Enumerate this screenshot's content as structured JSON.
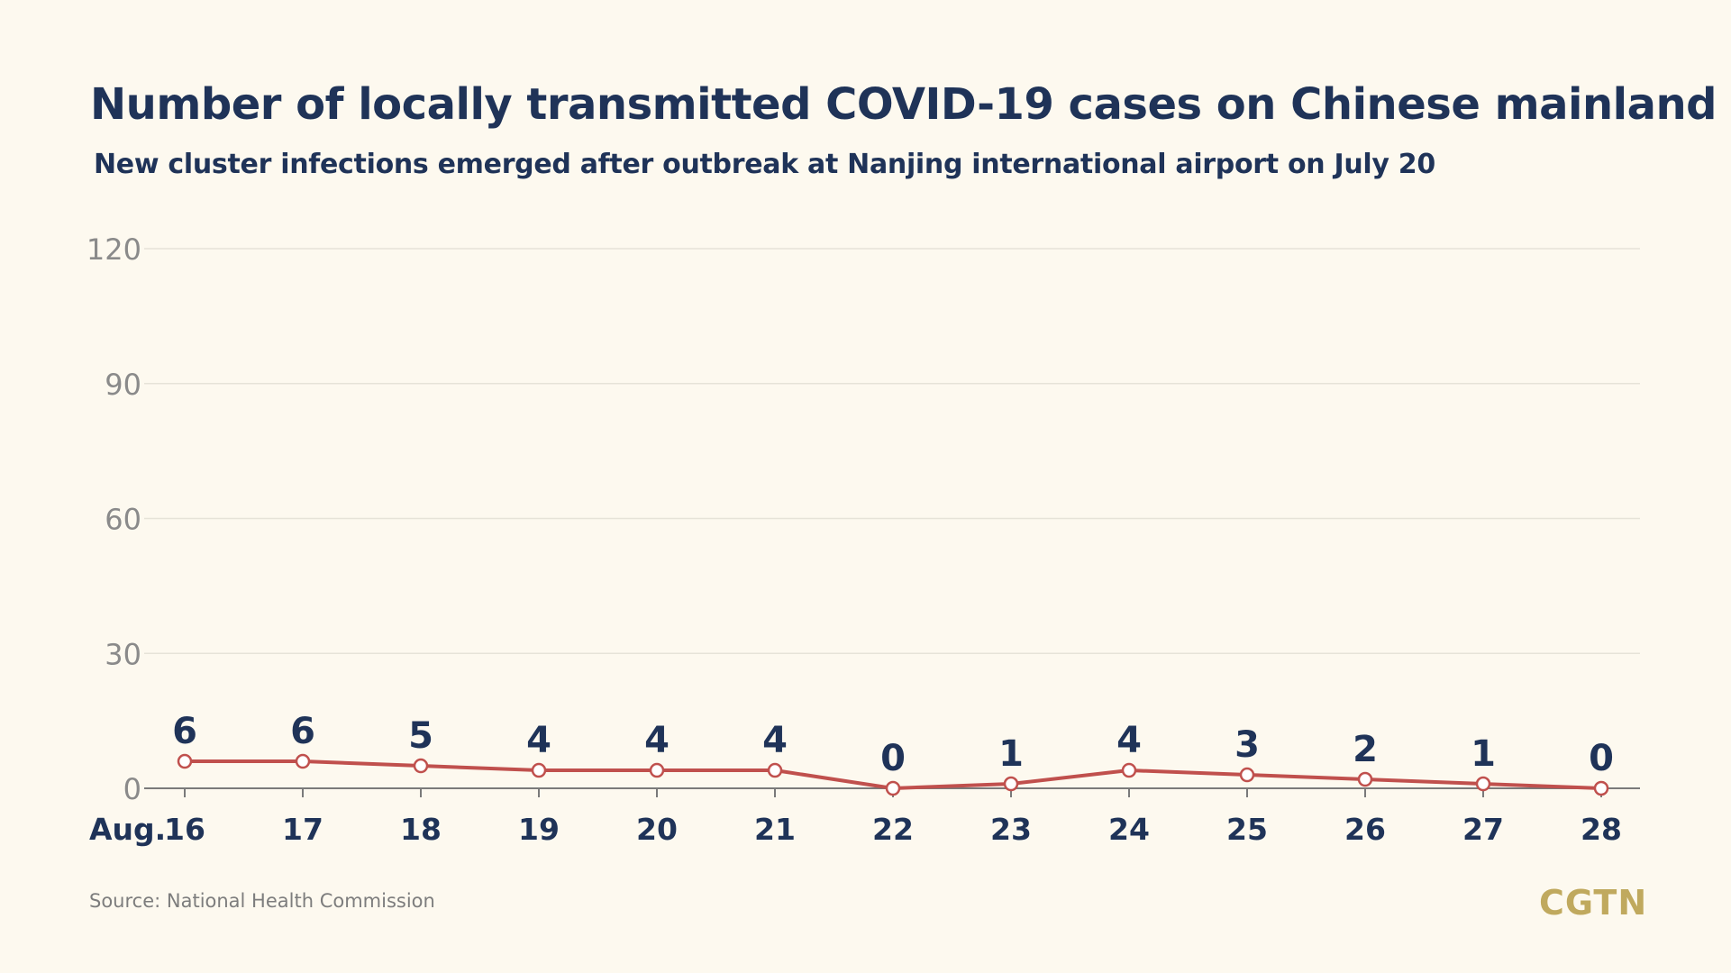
{
  "header": {
    "title": "Number of locally transmitted COVID-19 cases on Chinese mainland",
    "subtitle": "New cluster infections emerged after outbreak at Nanjing international airport on July 20"
  },
  "footer": {
    "source": "Source: National Health Commission",
    "logo": "CGTN"
  },
  "colors": {
    "background": "#fdf9ef",
    "title": "#1f3358",
    "line": "#c0504d",
    "gridline": "#e6e3d8",
    "axis_tick_label": "#8a8a8a",
    "logo": "#c0a95e"
  },
  "chart_data": {
    "type": "line",
    "x_prefix": "Aug.",
    "categories": [
      "16",
      "17",
      "18",
      "19",
      "20",
      "21",
      "22",
      "23",
      "24",
      "25",
      "26",
      "27",
      "28"
    ],
    "values": [
      6,
      6,
      5,
      4,
      4,
      4,
      0,
      1,
      4,
      3,
      2,
      1,
      0
    ],
    "data_labels": [
      "6",
      "6",
      "5",
      "4",
      "4",
      "4",
      "0",
      "1",
      "4",
      "3",
      "2",
      "1",
      "0"
    ],
    "yticks": [
      0,
      30,
      60,
      90,
      120
    ],
    "ylim": [
      0,
      120
    ],
    "grid": true,
    "legend": false,
    "marker": "hollow-circle"
  }
}
